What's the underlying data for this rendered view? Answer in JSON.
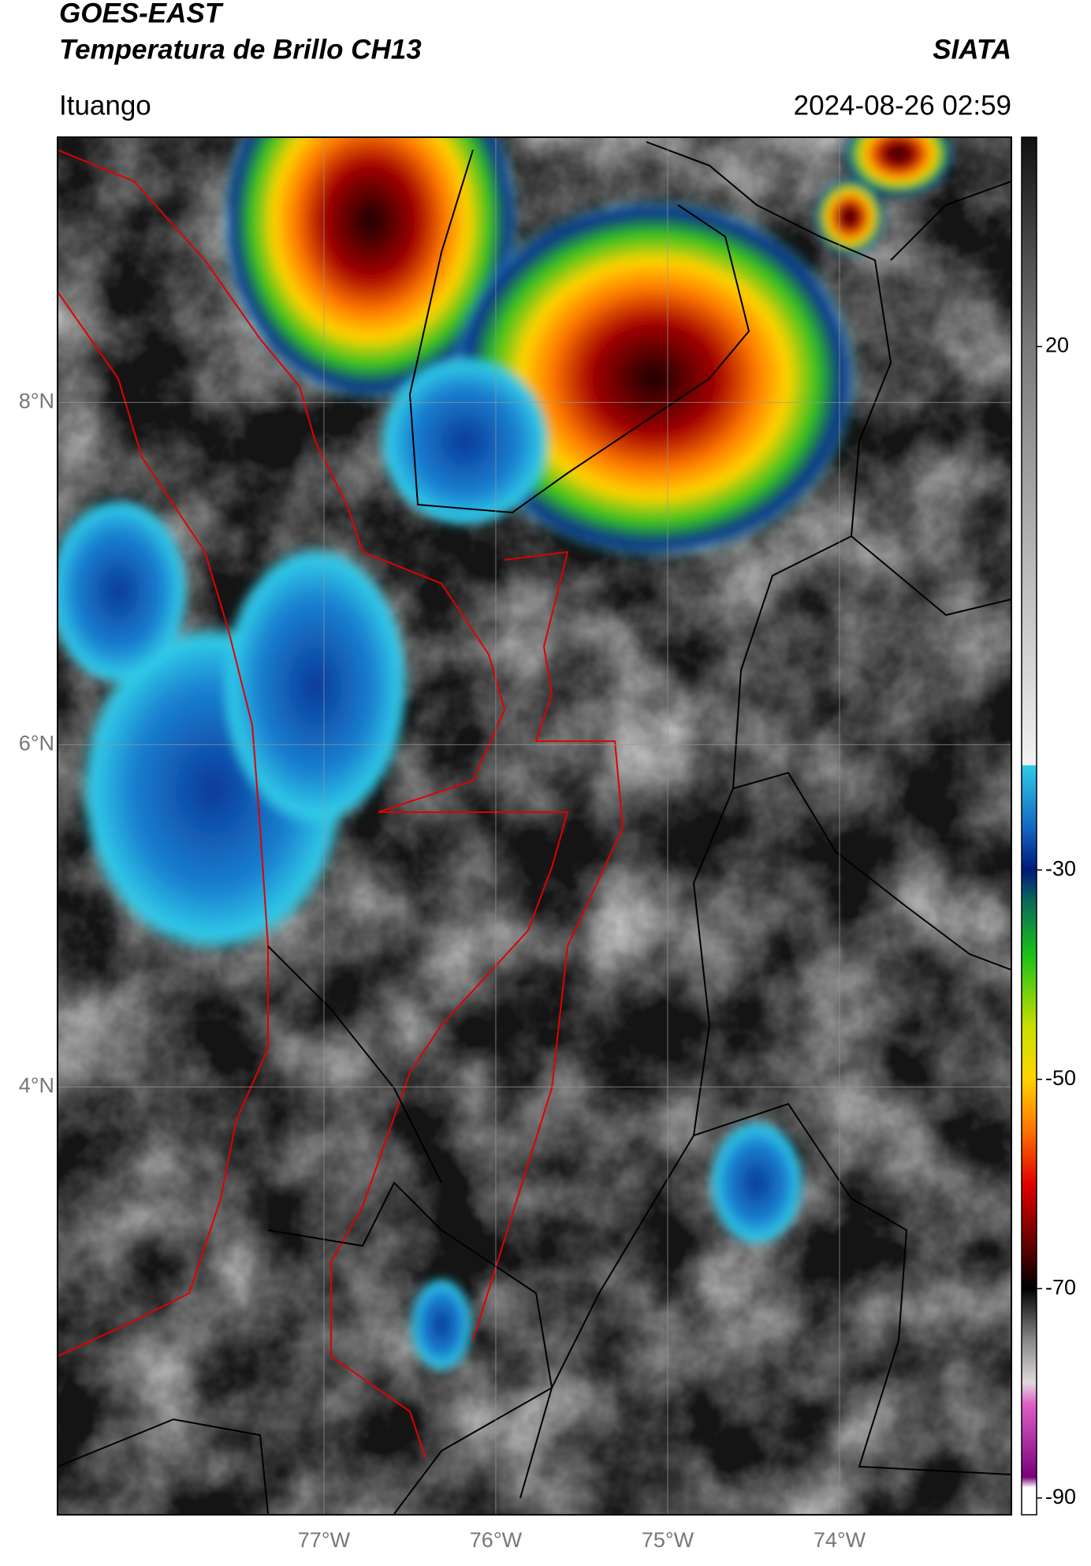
{
  "header": {
    "title": "GOES-EAST",
    "subtitle": "Temperatura de Brillo CH13",
    "brand": "SIATA",
    "region": "Ituango",
    "timestamp": "2024-08-26 02:59"
  },
  "map": {
    "lonlim": [
      -78.55,
      -73
    ],
    "latlim": [
      1.5,
      9.55
    ],
    "lat_ticks": [
      {
        "value": 4,
        "label": "4°N"
      },
      {
        "value": 6,
        "label": "6°N"
      },
      {
        "value": 8,
        "label": "8°N"
      }
    ],
    "lon_ticks": [
      {
        "value": -77,
        "label": "77°W"
      },
      {
        "value": -76,
        "label": "76°W"
      },
      {
        "value": -75,
        "label": "75°W"
      },
      {
        "value": -74,
        "label": "74°W"
      }
    ],
    "grid": true
  },
  "colorbar": {
    "lim": [
      -91.6,
      40
    ],
    "ticks": [
      -90,
      -70,
      -50,
      -30,
      20
    ],
    "stops": [
      {
        "value": 40,
        "color": "#111111"
      },
      {
        "value": 20,
        "color": "#7a7a7a"
      },
      {
        "value": -20,
        "color": "#f2f2f2"
      },
      {
        "value": -20,
        "color": "#30cbe8"
      },
      {
        "value": -26,
        "color": "#1466c4"
      },
      {
        "value": -30,
        "color": "#00187a"
      },
      {
        "value": -33,
        "color": "#0b6a5a"
      },
      {
        "value": -38,
        "color": "#18c018"
      },
      {
        "value": -45,
        "color": "#c8e000"
      },
      {
        "value": -50,
        "color": "#ffd400"
      },
      {
        "value": -55,
        "color": "#ff7000"
      },
      {
        "value": -60,
        "color": "#e00000"
      },
      {
        "value": -66,
        "color": "#600000"
      },
      {
        "value": -70,
        "color": "#000000"
      },
      {
        "value": -75,
        "color": "#8a8a8a"
      },
      {
        "value": -79,
        "color": "#e0d8dc"
      },
      {
        "value": -81,
        "color": "#e060c8"
      },
      {
        "value": -88,
        "color": "#7a007a"
      },
      {
        "value": -89,
        "color": "#ffffff"
      }
    ]
  }
}
